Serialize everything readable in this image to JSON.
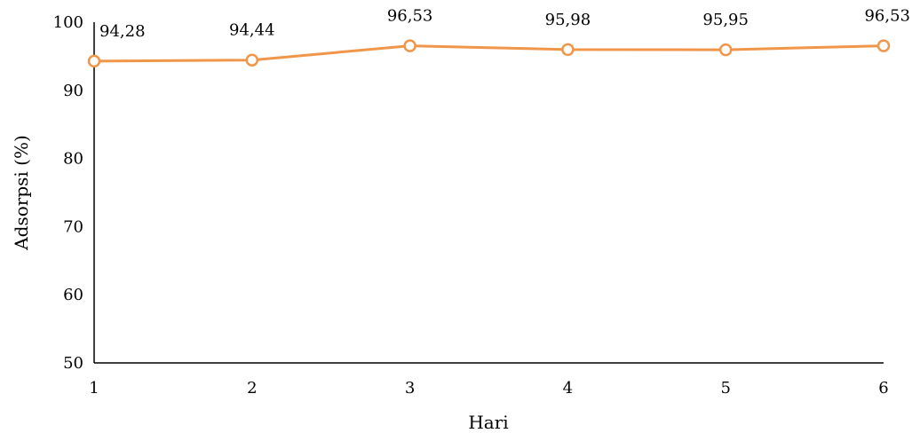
{
  "chart_data": {
    "type": "line",
    "title": "",
    "xlabel": "Hari",
    "ylabel": "Adsorpsi (%)",
    "x": [
      1,
      2,
      3,
      4,
      5,
      6
    ],
    "xticks": [
      "1",
      "2",
      "3",
      "4",
      "5",
      "6"
    ],
    "ylim": [
      50,
      100
    ],
    "yticks": [
      "50",
      "60",
      "70",
      "80",
      "90",
      "100"
    ],
    "yticks_values": [
      50,
      60,
      70,
      80,
      90,
      100
    ],
    "grid": false,
    "legend": "none",
    "series": [
      {
        "values": [
          94.28,
          94.44,
          96.53,
          95.98,
          95.95,
          96.53
        ],
        "labels": [
          "94,28",
          "94,44",
          "96,53",
          "95,98",
          "95,95",
          "96,53"
        ],
        "color": "#F0964A",
        "marker": "circle-open"
      }
    ]
  }
}
